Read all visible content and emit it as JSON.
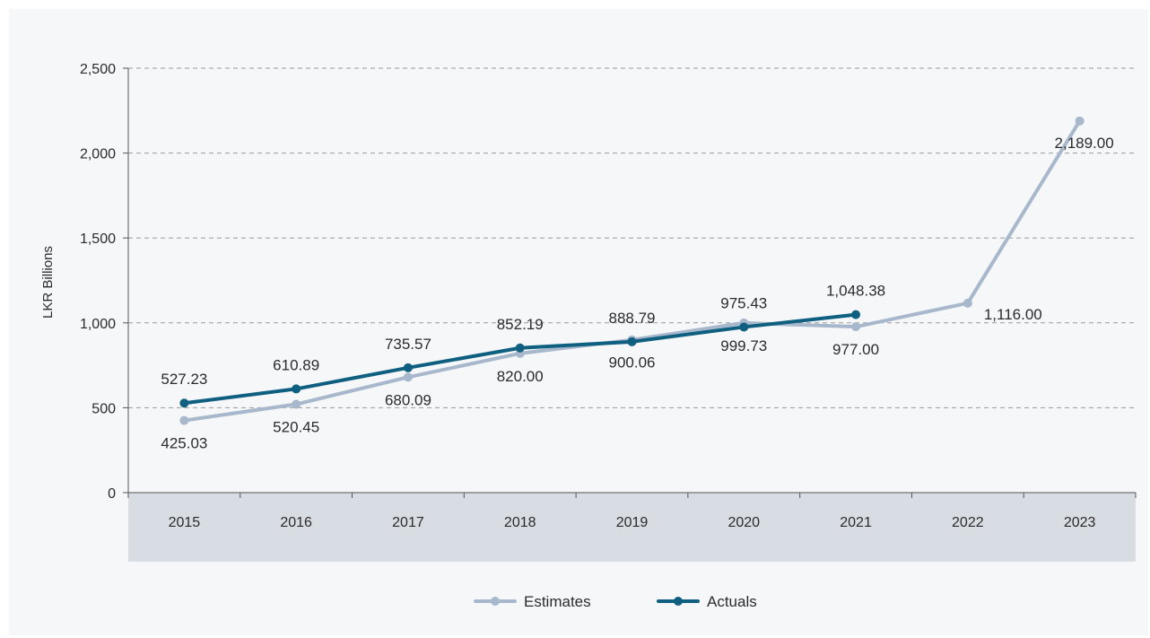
{
  "chart_data": {
    "type": "line",
    "categories": [
      "2015",
      "2016",
      "2017",
      "2018",
      "2019",
      "2020",
      "2021",
      "2022",
      "2023"
    ],
    "series": [
      {
        "name": "Estimates",
        "color": "#a8b8cc",
        "values": [
          425.03,
          520.45,
          680.09,
          820.0,
          900.06,
          999.73,
          977.0,
          1116.0,
          2189.0
        ],
        "labels": [
          "425.03",
          "520.45",
          "680.09",
          "820.00",
          "900.06",
          "999.73",
          "977.00",
          "1,116.00",
          "2,189.00"
        ]
      },
      {
        "name": "Actuals",
        "color": "#0f5f80",
        "values": [
          527.23,
          610.89,
          735.57,
          852.19,
          888.79,
          975.43,
          1048.38,
          null,
          null
        ],
        "labels": [
          "527.23",
          "610.89",
          "735.57",
          "852.19",
          "888.79",
          "975.43",
          "1,048.38",
          null,
          null
        ]
      }
    ],
    "title": "",
    "xlabel": "",
    "ylabel": "LKR Billions",
    "ylim": [
      0,
      2500
    ],
    "yticks": [
      0,
      500,
      1000,
      1500,
      2000,
      2500
    ],
    "ytick_labels": [
      "0",
      "500",
      "1,000",
      "1,500",
      "2,000",
      "2,500"
    ],
    "grid": "horizontal dashed",
    "legend_position": "bottom-center",
    "category_band_color": "#d8dce3"
  }
}
